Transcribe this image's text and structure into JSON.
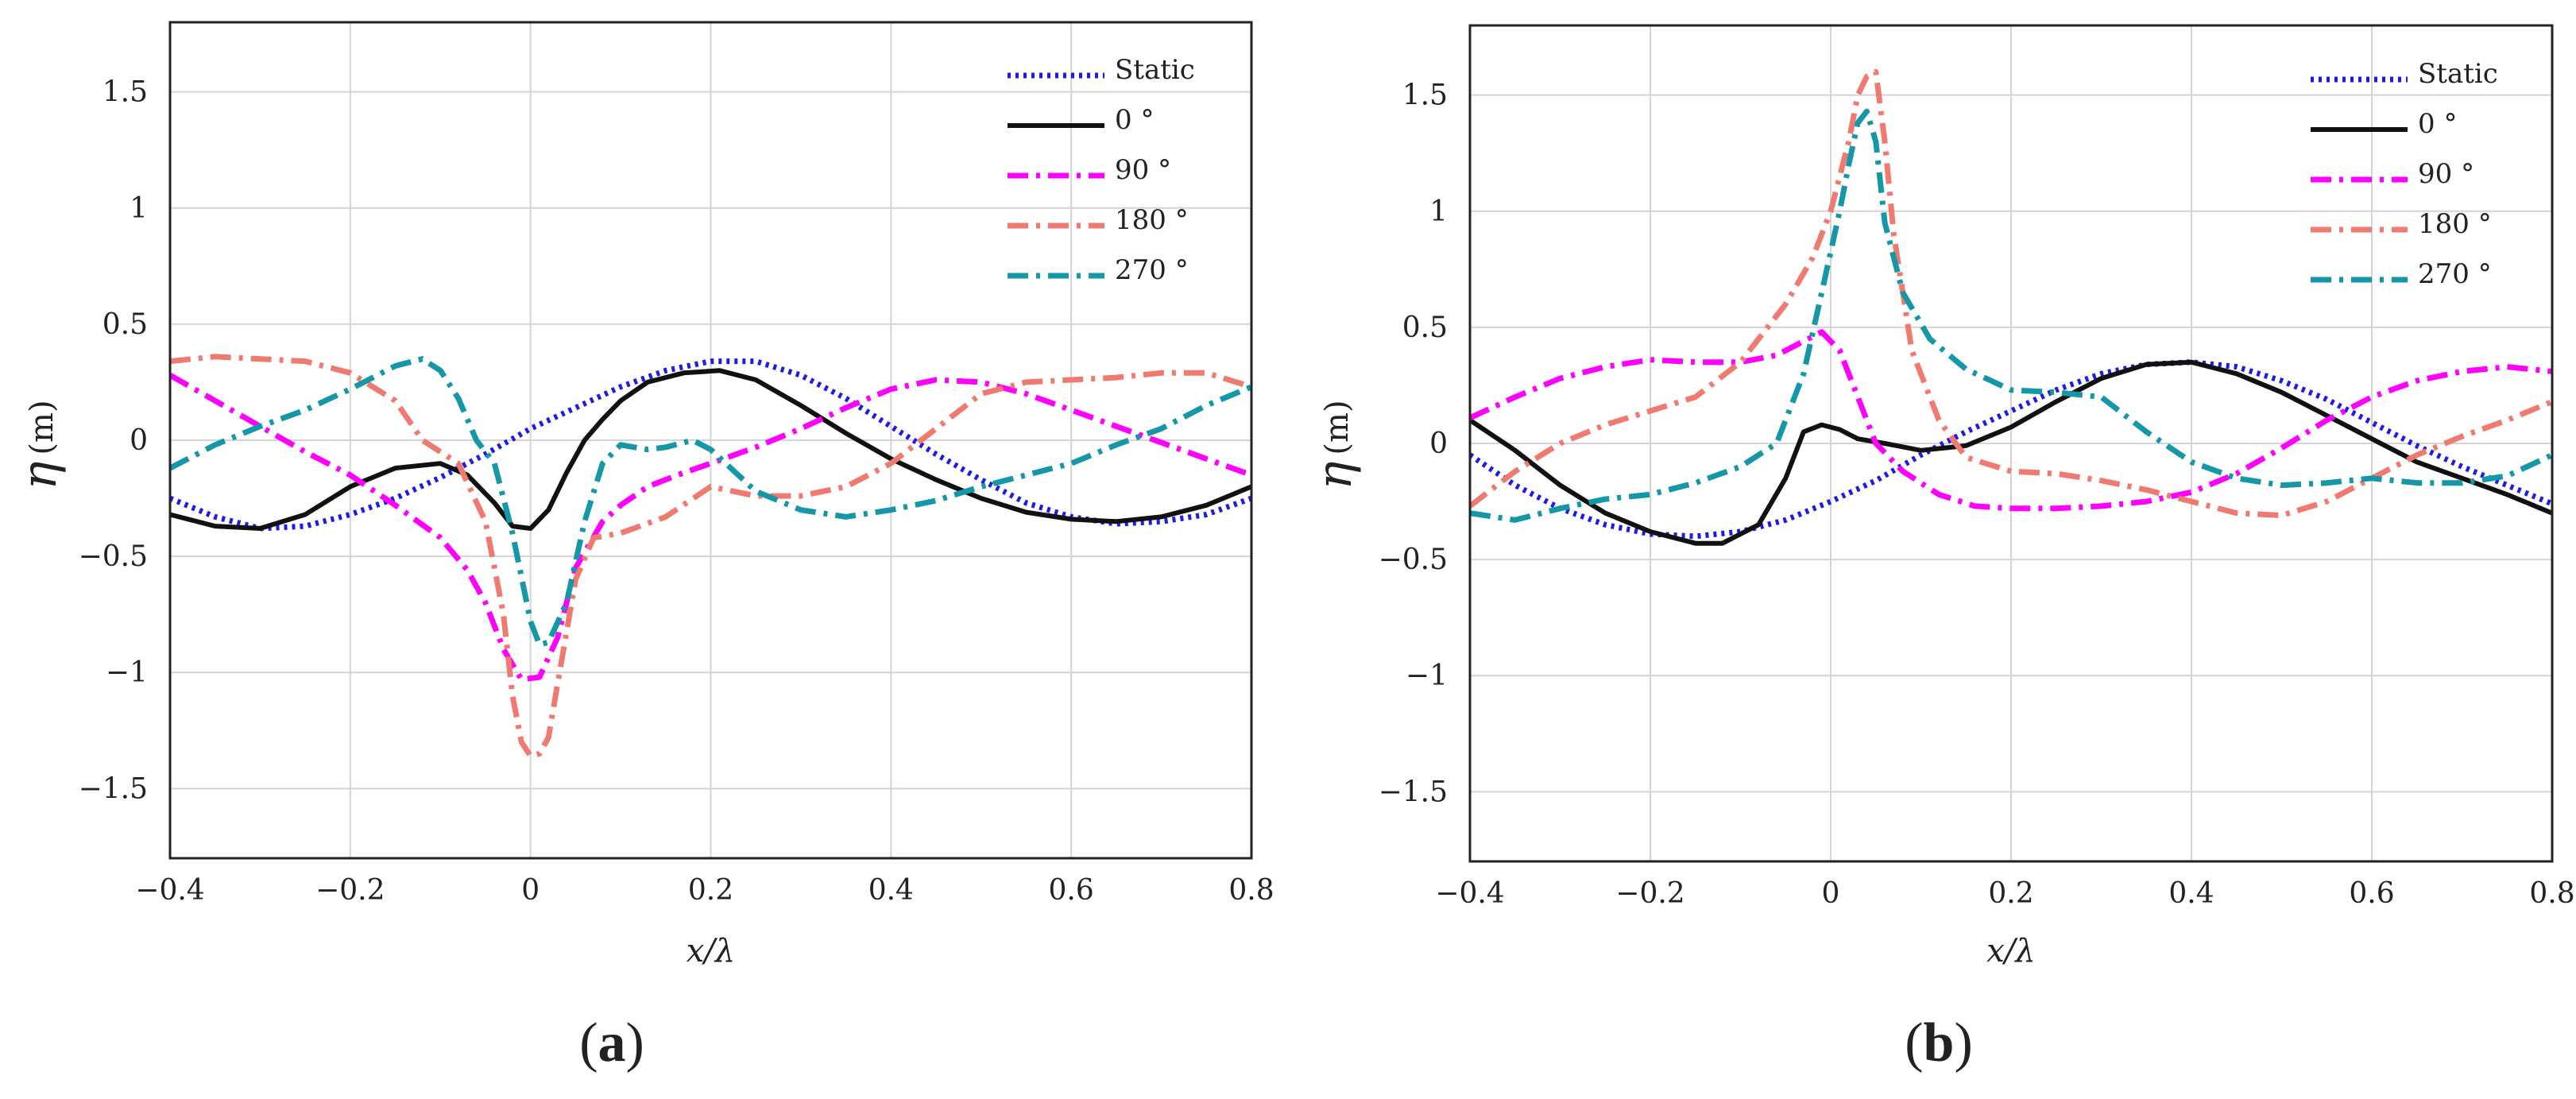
{
  "figure": {
    "panel_labels": [
      {
        "open": "(",
        "letter": "a",
        "close": ")"
      },
      {
        "open": "(",
        "letter": "b",
        "close": ")"
      }
    ]
  },
  "chart_data": [
    {
      "type": "line",
      "panel": "a",
      "title": "",
      "xlabel": "x/λ",
      "ylabel": "η",
      "ylabel_unit": "(m)",
      "xlim": [
        -0.4,
        0.8
      ],
      "ylim": [
        -1.8,
        1.8
      ],
      "xticks": [
        -0.4,
        -0.2,
        0,
        0.2,
        0.4,
        0.6,
        0.8
      ],
      "yticks": [
        -1.5,
        -1,
        -0.5,
        0,
        0.5,
        1,
        1.5
      ],
      "xtick_labels": [
        "−0.4",
        "−0.2",
        "0",
        "0.2",
        "0.4",
        "0.6",
        "0.8"
      ],
      "ytick_labels": [
        "−1.5",
        "−1",
        "−0.5",
        "0",
        "0.5",
        "1",
        "1.5"
      ],
      "grid": true,
      "legend_position": "top-right",
      "series": [
        {
          "name": "Static",
          "color": "#1c1ce6",
          "style": "dotted",
          "x": [
            -0.4,
            -0.35,
            -0.3,
            -0.25,
            -0.2,
            -0.15,
            -0.1,
            -0.05,
            0,
            0.05,
            0.1,
            0.15,
            0.2,
            0.25,
            0.3,
            0.35,
            0.4,
            0.45,
            0.5,
            0.55,
            0.6,
            0.65,
            0.7,
            0.75,
            0.8
          ],
          "y": [
            -0.25,
            -0.33,
            -0.38,
            -0.37,
            -0.32,
            -0.25,
            -0.16,
            -0.06,
            0.05,
            0.14,
            0.23,
            0.3,
            0.34,
            0.34,
            0.28,
            0.18,
            0.06,
            -0.06,
            -0.17,
            -0.27,
            -0.33,
            -0.36,
            -0.35,
            -0.32,
            -0.25
          ]
        },
        {
          "name": "0 °",
          "color": "#111111",
          "style": "solid",
          "x": [
            -0.4,
            -0.35,
            -0.3,
            -0.25,
            -0.2,
            -0.15,
            -0.1,
            -0.07,
            -0.04,
            -0.02,
            0,
            0.02,
            0.04,
            0.06,
            0.08,
            0.1,
            0.13,
            0.17,
            0.21,
            0.25,
            0.3,
            0.35,
            0.4,
            0.45,
            0.5,
            0.55,
            0.6,
            0.65,
            0.7,
            0.75,
            0.8
          ],
          "y": [
            -0.32,
            -0.37,
            -0.38,
            -0.32,
            -0.2,
            -0.12,
            -0.1,
            -0.15,
            -0.27,
            -0.37,
            -0.38,
            -0.3,
            -0.14,
            0.0,
            0.09,
            0.17,
            0.25,
            0.29,
            0.3,
            0.26,
            0.15,
            0.03,
            -0.08,
            -0.17,
            -0.25,
            -0.31,
            -0.34,
            -0.35,
            -0.33,
            -0.28,
            -0.2
          ]
        },
        {
          "name": "90 °",
          "color": "#ff00ff",
          "style": "dash-dot",
          "x": [
            -0.4,
            -0.35,
            -0.3,
            -0.25,
            -0.2,
            -0.15,
            -0.1,
            -0.07,
            -0.05,
            -0.03,
            -0.01,
            0.01,
            0.03,
            0.05,
            0.08,
            0.1,
            0.13,
            0.17,
            0.2,
            0.25,
            0.3,
            0.35,
            0.4,
            0.45,
            0.5,
            0.55,
            0.6,
            0.65,
            0.7,
            0.75,
            0.8
          ],
          "y": [
            0.28,
            0.17,
            0.06,
            -0.05,
            -0.15,
            -0.28,
            -0.42,
            -0.56,
            -0.7,
            -0.9,
            -1.03,
            -1.02,
            -0.85,
            -0.55,
            -0.35,
            -0.28,
            -0.2,
            -0.14,
            -0.1,
            -0.03,
            0.05,
            0.14,
            0.22,
            0.26,
            0.25,
            0.2,
            0.13,
            0.06,
            -0.01,
            -0.08,
            -0.15
          ]
        },
        {
          "name": "180 °",
          "color": "#f07a70",
          "style": "dash-dot",
          "x": [
            -0.4,
            -0.35,
            -0.3,
            -0.25,
            -0.2,
            -0.15,
            -0.12,
            -0.08,
            -0.05,
            -0.03,
            -0.02,
            -0.01,
            0,
            0.01,
            0.02,
            0.03,
            0.05,
            0.07,
            0.1,
            0.15,
            0.2,
            0.25,
            0.3,
            0.35,
            0.4,
            0.45,
            0.5,
            0.55,
            0.6,
            0.65,
            0.7,
            0.75,
            0.8
          ],
          "y": [
            0.34,
            0.36,
            0.35,
            0.34,
            0.29,
            0.17,
            0.0,
            -0.1,
            -0.35,
            -0.75,
            -1.1,
            -1.3,
            -1.36,
            -1.35,
            -1.28,
            -1.05,
            -0.6,
            -0.42,
            -0.4,
            -0.33,
            -0.2,
            -0.24,
            -0.24,
            -0.2,
            -0.1,
            0.05,
            0.2,
            0.25,
            0.26,
            0.27,
            0.29,
            0.29,
            0.23
          ]
        },
        {
          "name": "270 °",
          "color": "#1497a6",
          "style": "dash-dot",
          "x": [
            -0.4,
            -0.35,
            -0.3,
            -0.25,
            -0.2,
            -0.15,
            -0.12,
            -0.1,
            -0.08,
            -0.06,
            -0.04,
            -0.02,
            0,
            0.01,
            0.02,
            0.04,
            0.06,
            0.08,
            0.1,
            0.13,
            0.15,
            0.18,
            0.2,
            0.25,
            0.3,
            0.35,
            0.4,
            0.45,
            0.5,
            0.55,
            0.6,
            0.65,
            0.7,
            0.75,
            0.8
          ],
          "y": [
            -0.12,
            -0.02,
            0.06,
            0.13,
            0.22,
            0.32,
            0.35,
            0.3,
            0.18,
            0.0,
            -0.1,
            -0.4,
            -0.78,
            -0.88,
            -0.87,
            -0.7,
            -0.35,
            -0.1,
            -0.02,
            -0.04,
            -0.03,
            0.0,
            -0.04,
            -0.22,
            -0.3,
            -0.33,
            -0.3,
            -0.26,
            -0.2,
            -0.15,
            -0.1,
            -0.02,
            0.05,
            0.15,
            0.23
          ]
        }
      ]
    },
    {
      "type": "line",
      "panel": "b",
      "title": "",
      "xlabel": "x/λ",
      "ylabel": "η",
      "ylabel_unit": "(m)",
      "xlim": [
        -0.4,
        0.8
      ],
      "ylim": [
        -1.8,
        1.8
      ],
      "xticks": [
        -0.4,
        -0.2,
        0,
        0.2,
        0.4,
        0.6,
        0.8
      ],
      "yticks": [
        -1.5,
        -1,
        -0.5,
        0,
        0.5,
        1,
        1.5
      ],
      "xtick_labels": [
        "−0.4",
        "−0.2",
        "0",
        "0.2",
        "0.4",
        "0.6",
        "0.8"
      ],
      "ytick_labels": [
        "−1.5",
        "−1",
        "−0.5",
        "0",
        "0.5",
        "1",
        "1.5"
      ],
      "grid": true,
      "legend_position": "top-right",
      "series": [
        {
          "name": "Static",
          "color": "#1c1ce6",
          "style": "dotted",
          "x": [
            -0.4,
            -0.35,
            -0.3,
            -0.25,
            -0.2,
            -0.15,
            -0.1,
            -0.05,
            0,
            0.05,
            0.1,
            0.15,
            0.2,
            0.25,
            0.3,
            0.35,
            0.4,
            0.45,
            0.5,
            0.55,
            0.6,
            0.65,
            0.7,
            0.75,
            0.8
          ],
          "y": [
            -0.05,
            -0.18,
            -0.28,
            -0.35,
            -0.39,
            -0.4,
            -0.38,
            -0.33,
            -0.25,
            -0.16,
            -0.05,
            0.05,
            0.14,
            0.23,
            0.3,
            0.34,
            0.35,
            0.33,
            0.27,
            0.19,
            0.09,
            -0.01,
            -0.1,
            -0.18,
            -0.26
          ]
        },
        {
          "name": "0 °",
          "color": "#111111",
          "style": "solid",
          "x": [
            -0.4,
            -0.35,
            -0.3,
            -0.25,
            -0.2,
            -0.15,
            -0.12,
            -0.08,
            -0.05,
            -0.03,
            -0.01,
            0.01,
            0.03,
            0.06,
            0.1,
            0.15,
            0.2,
            0.25,
            0.3,
            0.35,
            0.4,
            0.45,
            0.5,
            0.55,
            0.6,
            0.65,
            0.7,
            0.75,
            0.8
          ],
          "y": [
            0.1,
            -0.03,
            -0.18,
            -0.3,
            -0.38,
            -0.43,
            -0.43,
            -0.35,
            -0.15,
            0.05,
            0.08,
            0.06,
            0.02,
            0.0,
            -0.03,
            -0.01,
            0.07,
            0.18,
            0.28,
            0.34,
            0.35,
            0.3,
            0.22,
            0.12,
            0.02,
            -0.08,
            -0.15,
            -0.22,
            -0.3
          ]
        },
        {
          "name": "90 °",
          "color": "#ff00ff",
          "style": "dash-dot",
          "x": [
            -0.4,
            -0.35,
            -0.3,
            -0.25,
            -0.2,
            -0.15,
            -0.1,
            -0.06,
            -0.03,
            -0.01,
            0.01,
            0.03,
            0.05,
            0.08,
            0.12,
            0.16,
            0.2,
            0.25,
            0.3,
            0.35,
            0.4,
            0.45,
            0.5,
            0.55,
            0.6,
            0.65,
            0.7,
            0.75,
            0.8
          ],
          "y": [
            0.11,
            0.2,
            0.28,
            0.33,
            0.36,
            0.35,
            0.35,
            0.38,
            0.44,
            0.48,
            0.4,
            0.2,
            0.0,
            -0.12,
            -0.22,
            -0.27,
            -0.28,
            -0.28,
            -0.27,
            -0.25,
            -0.21,
            -0.13,
            -0.02,
            0.1,
            0.2,
            0.27,
            0.31,
            0.33,
            0.31
          ]
        },
        {
          "name": "180 °",
          "color": "#f07a70",
          "style": "dash-dot",
          "x": [
            -0.4,
            -0.35,
            -0.3,
            -0.25,
            -0.2,
            -0.15,
            -0.1,
            -0.05,
            -0.02,
            0,
            0.02,
            0.03,
            0.04,
            0.05,
            0.06,
            0.07,
            0.09,
            0.12,
            0.15,
            0.2,
            0.25,
            0.3,
            0.35,
            0.4,
            0.45,
            0.5,
            0.55,
            0.6,
            0.65,
            0.7,
            0.75,
            0.8
          ],
          "y": [
            -0.27,
            -0.12,
            0.0,
            0.08,
            0.14,
            0.2,
            0.35,
            0.6,
            0.8,
            1.0,
            1.3,
            1.5,
            1.58,
            1.6,
            1.3,
            0.9,
            0.4,
            0.1,
            -0.06,
            -0.12,
            -0.13,
            -0.16,
            -0.2,
            -0.25,
            -0.3,
            -0.31,
            -0.25,
            -0.15,
            -0.05,
            0.03,
            0.1,
            0.18
          ]
        },
        {
          "name": "270 °",
          "color": "#1497a6",
          "style": "dash-dot",
          "x": [
            -0.4,
            -0.35,
            -0.3,
            -0.25,
            -0.2,
            -0.15,
            -0.1,
            -0.06,
            -0.03,
            -0.01,
            0.01,
            0.02,
            0.03,
            0.04,
            0.05,
            0.06,
            0.08,
            0.11,
            0.15,
            0.2,
            0.25,
            0.3,
            0.35,
            0.4,
            0.45,
            0.5,
            0.55,
            0.6,
            0.65,
            0.7,
            0.75,
            0.8
          ],
          "y": [
            -0.3,
            -0.33,
            -0.28,
            -0.24,
            -0.22,
            -0.17,
            -0.1,
            0.0,
            0.3,
            0.65,
            1.0,
            1.2,
            1.38,
            1.43,
            1.3,
            0.95,
            0.65,
            0.45,
            0.32,
            0.23,
            0.22,
            0.2,
            0.05,
            -0.08,
            -0.15,
            -0.18,
            -0.17,
            -0.15,
            -0.17,
            -0.17,
            -0.14,
            -0.05
          ]
        }
      ]
    }
  ]
}
